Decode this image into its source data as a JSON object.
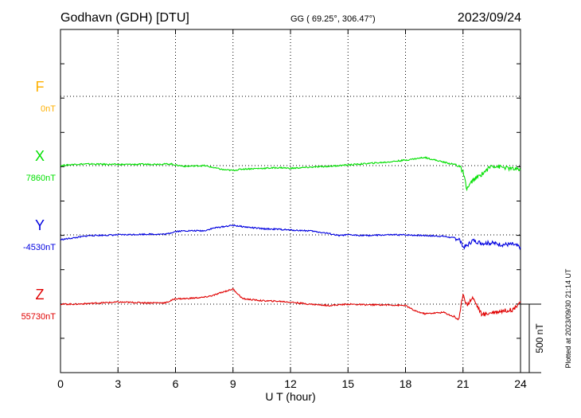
{
  "header": {
    "station": "Godhavn (GDH)  [DTU]",
    "coords": "GG ( 69.25°, 306.47°)",
    "date": "2023/09/24"
  },
  "side_note": "Plotted at 2023/09/30 21:14 UT",
  "chart_data": {
    "type": "line",
    "xlabel": "U T (hour)",
    "xlim": [
      0,
      24
    ],
    "xticks": [
      "0",
      "3",
      "6",
      "9",
      "12",
      "15",
      "18",
      "21",
      "24"
    ],
    "scale_bar": {
      "label": "500 nT",
      "value_nT": 500
    },
    "series": [
      {
        "name": "F",
        "baseline_label": "0nT",
        "color": "#ffb000",
        "values": []
      },
      {
        "name": "X",
        "baseline_label": "7860nT",
        "color": "#00e000",
        "points": [
          [
            0,
            0
          ],
          [
            0.8,
            10
          ],
          [
            1.5,
            12
          ],
          [
            3,
            8
          ],
          [
            4.5,
            10
          ],
          [
            5.8,
            12
          ],
          [
            6,
            4
          ],
          [
            6.5,
            -5
          ],
          [
            7.5,
            0
          ],
          [
            8,
            -15
          ],
          [
            8.5,
            -30
          ],
          [
            9,
            -35
          ],
          [
            9.5,
            -25
          ],
          [
            10.5,
            -20
          ],
          [
            11.5,
            -15
          ],
          [
            12,
            -20
          ],
          [
            13,
            -12
          ],
          [
            14,
            -5
          ],
          [
            15,
            5
          ],
          [
            16,
            15
          ],
          [
            17,
            25
          ],
          [
            18,
            40
          ],
          [
            18.5,
            50
          ],
          [
            19,
            60
          ],
          [
            20,
            25
          ],
          [
            20.8,
            0
          ],
          [
            21,
            -50
          ],
          [
            21.2,
            -170
          ],
          [
            21.5,
            -110
          ],
          [
            22,
            -60
          ],
          [
            22.5,
            0
          ],
          [
            23,
            -10
          ],
          [
            23.6,
            -25
          ],
          [
            24,
            -30
          ]
        ]
      },
      {
        "name": "Y",
        "baseline_label": "-4530nT",
        "color": "#0000e0",
        "points": [
          [
            0,
            -35
          ],
          [
            0.8,
            -20
          ],
          [
            1.5,
            -5
          ],
          [
            3,
            0
          ],
          [
            4.5,
            5
          ],
          [
            5.5,
            5
          ],
          [
            6,
            25
          ],
          [
            6.5,
            30
          ],
          [
            7.5,
            30
          ],
          [
            8,
            50
          ],
          [
            8.5,
            60
          ],
          [
            9,
            70
          ],
          [
            9.5,
            60
          ],
          [
            10.5,
            45
          ],
          [
            11.5,
            40
          ],
          [
            12,
            35
          ],
          [
            13,
            30
          ],
          [
            14,
            10
          ],
          [
            14.5,
            -5
          ],
          [
            15,
            0
          ],
          [
            16,
            -5
          ],
          [
            17,
            0
          ],
          [
            18,
            0
          ],
          [
            19,
            -5
          ],
          [
            20,
            -10
          ],
          [
            20.8,
            -30
          ],
          [
            21,
            -90
          ],
          [
            21.2,
            -80
          ],
          [
            21.5,
            -40
          ],
          [
            22,
            -60
          ],
          [
            22.5,
            -60
          ],
          [
            23,
            -70
          ],
          [
            23.6,
            -70
          ],
          [
            24,
            -90
          ]
        ]
      },
      {
        "name": "Z",
        "baseline_label": "55730nT",
        "color": "#e00000",
        "points": [
          [
            0,
            0
          ],
          [
            0.8,
            0
          ],
          [
            1.5,
            5
          ],
          [
            3,
            15
          ],
          [
            4.5,
            10
          ],
          [
            5.5,
            10
          ],
          [
            6,
            40
          ],
          [
            6.5,
            40
          ],
          [
            7.5,
            50
          ],
          [
            8,
            65
          ],
          [
            8.5,
            90
          ],
          [
            9,
            110
          ],
          [
            9.5,
            40
          ],
          [
            10.5,
            25
          ],
          [
            11.5,
            20
          ],
          [
            12,
            15
          ],
          [
            13,
            0
          ],
          [
            14,
            -10
          ],
          [
            15,
            0
          ],
          [
            16,
            -5
          ],
          [
            17,
            -5
          ],
          [
            18,
            -10
          ],
          [
            18.5,
            -50
          ],
          [
            19,
            -70
          ],
          [
            20,
            -60
          ],
          [
            20.8,
            -110
          ],
          [
            21,
            80
          ],
          [
            21.2,
            -10
          ],
          [
            21.5,
            50
          ],
          [
            22,
            -80
          ],
          [
            22.5,
            -60
          ],
          [
            23,
            -50
          ],
          [
            23.6,
            -40
          ],
          [
            24,
            20
          ]
        ]
      }
    ]
  }
}
